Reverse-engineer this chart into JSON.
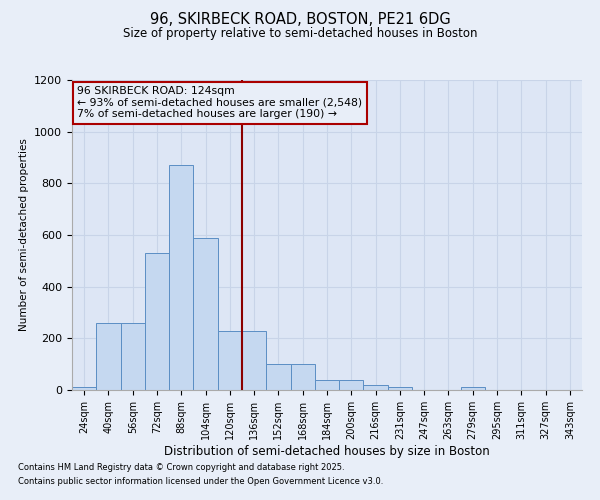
{
  "title1": "96, SKIRBECK ROAD, BOSTON, PE21 6DG",
  "title2": "Size of property relative to semi-detached houses in Boston",
  "xlabel": "Distribution of semi-detached houses by size in Boston",
  "ylabel": "Number of semi-detached properties",
  "footnote1": "Contains HM Land Registry data © Crown copyright and database right 2025.",
  "footnote2": "Contains public sector information licensed under the Open Government Licence v3.0.",
  "bin_labels": [
    "24sqm",
    "40sqm",
    "56sqm",
    "72sqm",
    "88sqm",
    "104sqm",
    "120sqm",
    "136sqm",
    "152sqm",
    "168sqm",
    "184sqm",
    "200sqm",
    "216sqm",
    "231sqm",
    "247sqm",
    "263sqm",
    "279sqm",
    "295sqm",
    "311sqm",
    "327sqm",
    "343sqm"
  ],
  "bar_values": [
    10,
    260,
    260,
    530,
    870,
    590,
    230,
    230,
    100,
    100,
    40,
    40,
    20,
    10,
    0,
    0,
    10,
    0,
    0,
    0,
    0
  ],
  "bar_color": "#c5d8f0",
  "bar_edge_color": "#5b8ec4",
  "ylim": [
    0,
    1200
  ],
  "yticks": [
    0,
    200,
    400,
    600,
    800,
    1000,
    1200
  ],
  "vline_index": 6,
  "vline_color": "#8b0000",
  "annotation_text": "96 SKIRBECK ROAD: 124sqm\n← 93% of semi-detached houses are smaller (2,548)\n7% of semi-detached houses are larger (190) →",
  "annotation_box_color": "#aa0000",
  "background_color": "#e8eef8",
  "grid_color": "#d0d8e8",
  "plot_bg_color": "#dde6f5"
}
